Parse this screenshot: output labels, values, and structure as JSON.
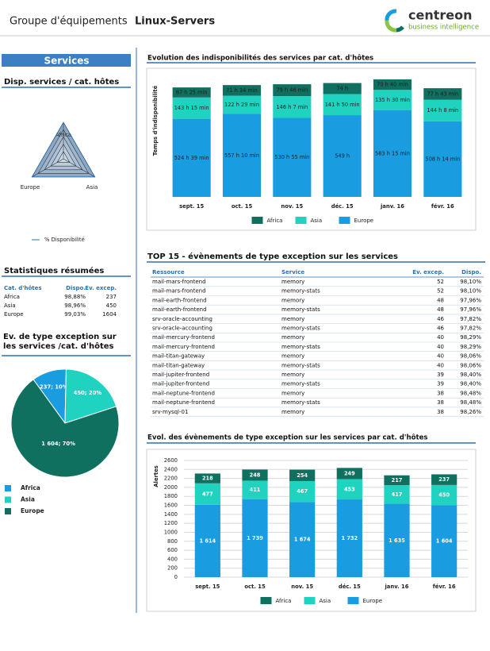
{
  "header": {
    "prefix": "Groupe d'équipements",
    "title": "Linux-Servers",
    "logo": "centreon",
    "logo_sub": "business intelligence"
  },
  "sidebar": {
    "title": "Services"
  },
  "summary": {
    "title": "Statistiques résumées",
    "columns": [
      "Cat. d'hôtes",
      "Dispo.",
      "Ev. excep."
    ],
    "rows": [
      [
        "Africa",
        "98,88%",
        237
      ],
      [
        "Asia",
        "98,96%",
        450
      ],
      [
        "Europe",
        "99,03%",
        1604
      ]
    ]
  },
  "top15": {
    "title": "TOP 15 - évènements de type exception sur les services",
    "columns": [
      "Ressource",
      "Service",
      "Ev. excep.",
      "Dispo."
    ],
    "rows": [
      [
        "mail-mars-frontend",
        "memory",
        52,
        "98,10%"
      ],
      [
        "mail-mars-frontend",
        "memory-stats",
        52,
        "98,10%"
      ],
      [
        "mail-earth-frontend",
        "memory",
        48,
        "97,96%"
      ],
      [
        "mail-earth-frontend",
        "memory-stats",
        48,
        "97,96%"
      ],
      [
        "srv-oracle-accounting",
        "memory",
        46,
        "97,82%"
      ],
      [
        "srv-oracle-accounting",
        "memory-stats",
        46,
        "97,82%"
      ],
      [
        "mail-mercury-frontend",
        "memory",
        40,
        "98,29%"
      ],
      [
        "mail-mercury-frontend",
        "memory-stats",
        40,
        "98,29%"
      ],
      [
        "mail-titan-gateway",
        "memory",
        40,
        "98,06%"
      ],
      [
        "mail-titan-gateway",
        "memory-stats",
        40,
        "98,06%"
      ],
      [
        "mail-jupiter-frontend",
        "memory",
        39,
        "98,40%"
      ],
      [
        "mail-jupiter-frontend",
        "memory-stats",
        39,
        "98,40%"
      ],
      [
        "mail-neptune-frontend",
        "memory",
        38,
        "98,48%"
      ],
      [
        "mail-neptune-frontend",
        "memory-stats",
        38,
        "98,48%"
      ],
      [
        "srv-mysql-01",
        "memory",
        38,
        "98,26%"
      ]
    ]
  },
  "chart_data": [
    {
      "type": "radar",
      "title": "Disp. services / cat. hôtes",
      "categories": [
        "Africa",
        "Asia",
        "Europe"
      ],
      "rlim": [
        0,
        100
      ],
      "series": [
        {
          "name": "% Disponibilité",
          "color": "#2e75b6",
          "values": [
            98.88,
            98.96,
            99.03
          ]
        }
      ]
    },
    {
      "type": "bar",
      "stacked": true,
      "title": "Evolution des indisponibilités des services par cat. d'hôtes",
      "y_label": "Temps d'indisponibilité",
      "categories": [
        "sept. 15",
        "oct. 15",
        "nov. 15",
        "déc. 15",
        "janv. 16",
        "févr. 16"
      ],
      "ylim": [
        0,
        48000
      ],
      "series": [
        {
          "name": "Europe",
          "color": "#1a9de0",
          "values": [
            31479,
            33430,
            31855,
            32940,
            34995,
            30494
          ],
          "value_labels": [
            "524 h 39 min",
            "557 h 10 min",
            "530 h 55 min",
            "549 h",
            "583 h 15 min",
            "508 h 14 min"
          ]
        },
        {
          "name": "Asia",
          "color": "#1fd3c0",
          "values": [
            8595,
            7349,
            8767,
            8510,
            8130,
            8648
          ],
          "value_labels": [
            "143 h 15 min",
            "122 h 29 min",
            "146 h 7 min",
            "141 h 50 min",
            "135 h 30 min",
            "144 h 8 min"
          ]
        },
        {
          "name": "Africa",
          "color": "#0f7060",
          "values": [
            4045,
            4294,
            4786,
            4440,
            4240,
            4663
          ],
          "value_labels": [
            "67 h 25 min",
            "71 h 34 min",
            "79 h 46 min",
            "74 h",
            "70 h 40 min",
            "77 h 43 min"
          ]
        }
      ]
    },
    {
      "type": "pie",
      "title": "Ev. de type exception sur les services /cat. d'hôtes",
      "categories": [
        "Africa",
        "Asia",
        "Europe"
      ],
      "values": [
        237,
        450,
        1604
      ],
      "value_labels": [
        "237; 10%",
        "450; 20%",
        "1 604; 70%"
      ],
      "colors": [
        "#1a9de0",
        "#1fd3c0",
        "#0f7060"
      ]
    },
    {
      "type": "bar",
      "stacked": true,
      "title": "Evol. des évènements de type exception sur les services par cat. d'hôtes",
      "y_label": "Alertes",
      "categories": [
        "sept. 15",
        "oct. 15",
        "nov. 15",
        "déc. 15",
        "janv. 16",
        "févr. 16"
      ],
      "ylim": [
        0,
        2600
      ],
      "yticks": [
        0,
        200,
        400,
        600,
        800,
        1000,
        1200,
        1400,
        1600,
        1800,
        2000,
        2200,
        2400,
        2600
      ],
      "grid": true,
      "series": [
        {
          "name": "Europe",
          "color": "#1a9de0",
          "values": [
            1614,
            1739,
            1674,
            1732,
            1635,
            1604
          ],
          "value_labels": [
            "1 614",
            "1 739",
            "1 674",
            "1 732",
            "1 635",
            "1 604"
          ]
        },
        {
          "name": "Asia",
          "color": "#1fd3c0",
          "values": [
            477,
            411,
            467,
            453,
            417,
            450
          ]
        },
        {
          "name": "Africa",
          "color": "#0f7060",
          "values": [
            218,
            248,
            254,
            249,
            217,
            237
          ]
        }
      ]
    }
  ]
}
